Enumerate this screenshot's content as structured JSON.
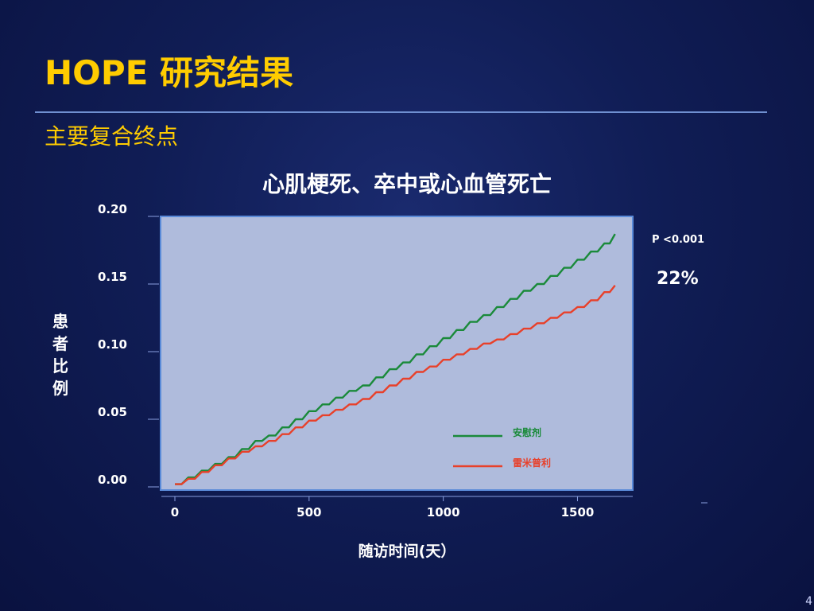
{
  "slide": {
    "title": "HOPE 研究结果",
    "subtitle": "主要复合终点",
    "page_number": "4"
  },
  "annotations": {
    "p_value": "P <0.001",
    "risk_reduction": "22%"
  },
  "colors": {
    "placebo": "#1a8a3a",
    "ramipril": "#e8402a",
    "plot_bg": "#afbbdc",
    "title": "#ffcc00"
  },
  "chart_data": {
    "type": "line",
    "title": "心肌梗死、卒中或心血管死亡",
    "xlabel": "随访时间(天）",
    "ylabel": "患者比例",
    "xlim": [
      0,
      1700
    ],
    "ylim": [
      0,
      0.2
    ],
    "x_ticks": [
      0,
      500,
      1000,
      1500
    ],
    "x_tick_labels": [
      "0",
      "500",
      "1000",
      "1500"
    ],
    "y_ticks": [
      0.0,
      0.05,
      0.1,
      0.15,
      0.2
    ],
    "y_tick_labels": [
      "0.00",
      "0.05",
      "0.10",
      "0.15",
      "0.20"
    ],
    "legend_position": "bottom-right inside plot",
    "grid": false,
    "series": [
      {
        "name": "安慰剂",
        "color": "#1a8a3a",
        "x": [
          0,
          50,
          100,
          150,
          200,
          250,
          300,
          350,
          400,
          450,
          500,
          550,
          600,
          650,
          700,
          750,
          800,
          850,
          900,
          950,
          1000,
          1050,
          1100,
          1150,
          1200,
          1250,
          1300,
          1350,
          1400,
          1450,
          1500,
          1550,
          1600,
          1640
        ],
        "values": [
          0.002,
          0.007,
          0.012,
          0.017,
          0.022,
          0.028,
          0.034,
          0.038,
          0.044,
          0.05,
          0.056,
          0.061,
          0.066,
          0.071,
          0.075,
          0.081,
          0.087,
          0.092,
          0.098,
          0.104,
          0.11,
          0.116,
          0.122,
          0.127,
          0.133,
          0.139,
          0.145,
          0.15,
          0.156,
          0.162,
          0.168,
          0.174,
          0.18,
          0.187
        ]
      },
      {
        "name": "雷米普利",
        "color": "#e8402a",
        "x": [
          0,
          50,
          100,
          150,
          200,
          250,
          300,
          350,
          400,
          450,
          500,
          550,
          600,
          650,
          700,
          750,
          800,
          850,
          900,
          950,
          1000,
          1050,
          1100,
          1150,
          1200,
          1250,
          1300,
          1350,
          1400,
          1450,
          1500,
          1550,
          1600,
          1640
        ],
        "values": [
          0.002,
          0.006,
          0.011,
          0.016,
          0.021,
          0.026,
          0.03,
          0.034,
          0.039,
          0.044,
          0.049,
          0.053,
          0.057,
          0.061,
          0.065,
          0.07,
          0.075,
          0.08,
          0.085,
          0.089,
          0.094,
          0.098,
          0.102,
          0.106,
          0.109,
          0.113,
          0.117,
          0.121,
          0.125,
          0.129,
          0.133,
          0.138,
          0.144,
          0.149
        ]
      }
    ]
  }
}
